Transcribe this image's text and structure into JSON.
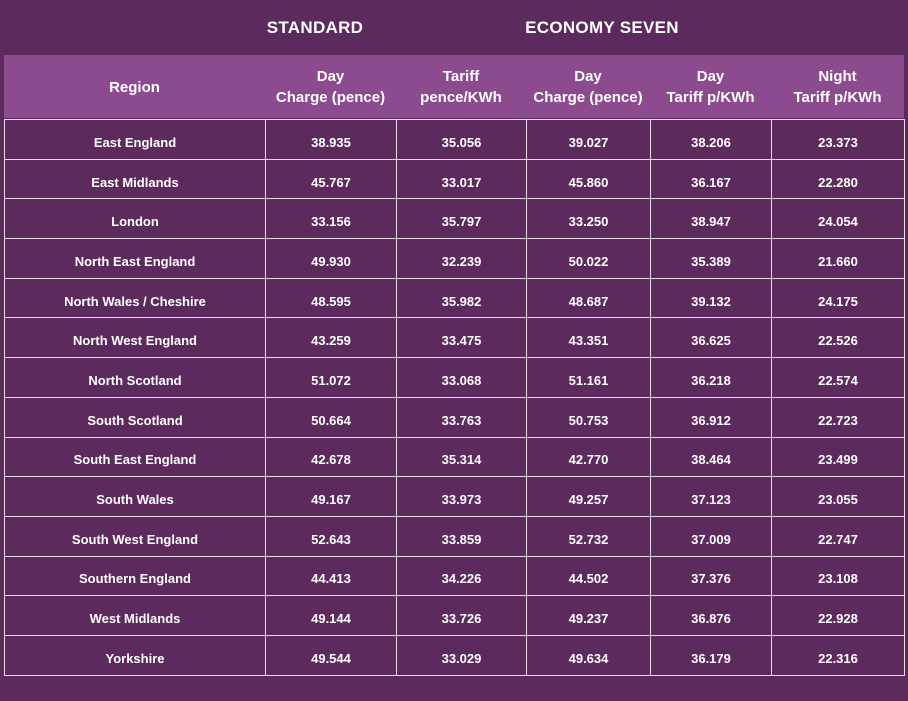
{
  "groups": [
    "STANDARD",
    "ECONOMY SEVEN"
  ],
  "table": {
    "header": [
      [
        "Region"
      ],
      [
        "Day",
        "Charge (pence)"
      ],
      [
        "Tariff",
        "pence/KWh"
      ],
      [
        "Day",
        "Charge (pence)"
      ],
      [
        "Day",
        "Tariff p/KWh"
      ],
      [
        "Night",
        "Tariff p/KWh"
      ]
    ],
    "rows": [
      [
        "East England",
        "38.935",
        "35.056",
        "39.027",
        "38.206",
        "23.373"
      ],
      [
        "East Midlands",
        "45.767",
        "33.017",
        "45.860",
        "36.167",
        "22.280"
      ],
      [
        "London",
        "33.156",
        "35.797",
        "33.250",
        "38.947",
        "24.054"
      ],
      [
        "North East England",
        "49.930",
        "32.239",
        "50.022",
        "35.389",
        "21.660"
      ],
      [
        "North Wales / Cheshire",
        "48.595",
        "35.982",
        "48.687",
        "39.132",
        "24.175"
      ],
      [
        "North West England",
        "43.259",
        "33.475",
        "43.351",
        "36.625",
        "22.526"
      ],
      [
        "North Scotland",
        "51.072",
        "33.068",
        "51.161",
        "36.218",
        "22.574"
      ],
      [
        "South Scotland",
        "50.664",
        "33.763",
        "50.753",
        "36.912",
        "22.723"
      ],
      [
        "South East England",
        "42.678",
        "35.314",
        "42.770",
        "38.464",
        "23.499"
      ],
      [
        "South Wales",
        "49.167",
        "33.973",
        "49.257",
        "37.123",
        "23.055"
      ],
      [
        "South West England",
        "52.643",
        "33.859",
        "52.732",
        "37.009",
        "22.747"
      ],
      [
        "Southern England",
        "44.413",
        "34.226",
        "44.502",
        "37.376",
        "23.108"
      ],
      [
        "West Midlands",
        "49.144",
        "33.726",
        "49.237",
        "36.876",
        "22.928"
      ],
      [
        "Yorkshire",
        "49.544",
        "33.029",
        "49.634",
        "36.179",
        "22.316"
      ]
    ]
  }
}
